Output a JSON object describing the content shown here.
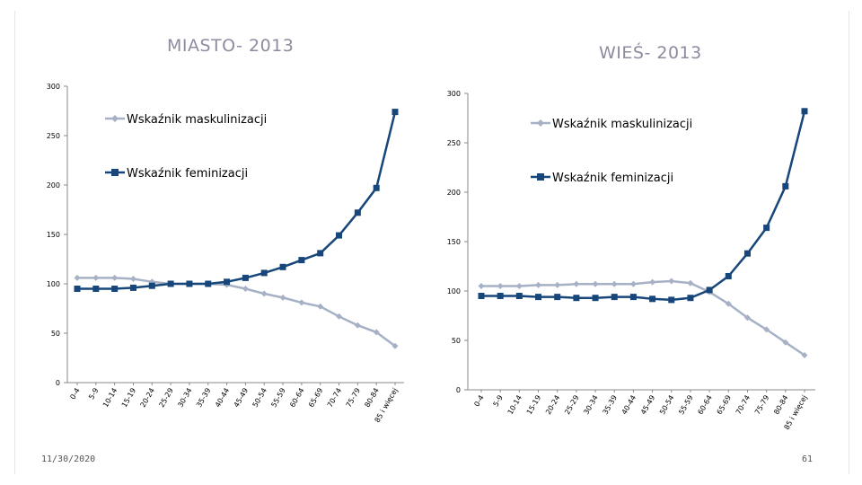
{
  "slide": {
    "date": "11/30/2020",
    "page_number": "61"
  },
  "colors": {
    "masc": "#a7b1c6",
    "fem": "#17467a",
    "axis": "#888888",
    "text": "#000000"
  },
  "chart_data": [
    {
      "type": "line",
      "title": "MIASTO- 2013",
      "categories": [
        "0-4",
        "5-9",
        "10-14",
        "15-19",
        "20-24",
        "25-29",
        "30-34",
        "35-39",
        "40-44",
        "45-49",
        "50-54",
        "55-59",
        "60-64",
        "65-69",
        "70-74",
        "75-79",
        "80-84",
        "85 i więcej"
      ],
      "ylim": [
        0,
        300
      ],
      "yticks": [
        "0",
        "50",
        "100",
        "150",
        "200",
        "250",
        "300"
      ],
      "series": [
        {
          "name": "Wskaźnik maskulinizacji",
          "marker": "diamond",
          "values": [
            106,
            106,
            106,
            105,
            102,
            100,
            100,
            100,
            99,
            95,
            90,
            86,
            81,
            77,
            67,
            58,
            51,
            37
          ]
        },
        {
          "name": "Wskaźnik feminizacji",
          "marker": "square",
          "values": [
            95,
            95,
            95,
            96,
            98,
            100,
            100,
            100,
            102,
            106,
            111,
            117,
            124,
            131,
            149,
            172,
            197,
            274
          ]
        }
      ]
    },
    {
      "type": "line",
      "title": "WIEŚ- 2013",
      "categories": [
        "0-4",
        "5-9",
        "10-14",
        "15-19",
        "20-24",
        "25-29",
        "30-34",
        "35-39",
        "40-44",
        "45-49",
        "50-54",
        "55-59",
        "60-64",
        "65-69",
        "70-74",
        "75-79",
        "80-84",
        "85 i więcej"
      ],
      "ylim": [
        0,
        300
      ],
      "yticks": [
        "0",
        "50",
        "100",
        "150",
        "200",
        "250",
        "300"
      ],
      "series": [
        {
          "name": "Wskaźnik maskulinizacji",
          "marker": "diamond",
          "values": [
            105,
            105,
            105,
            106,
            106,
            107,
            107,
            107,
            107,
            109,
            110,
            108,
            99,
            87,
            73,
            61,
            48,
            35
          ]
        },
        {
          "name": "Wskaźnik feminizacji",
          "marker": "square",
          "values": [
            95,
            95,
            95,
            94,
            94,
            93,
            93,
            94,
            94,
            92,
            91,
            93,
            101,
            115,
            138,
            164,
            206,
            282
          ]
        }
      ]
    }
  ]
}
